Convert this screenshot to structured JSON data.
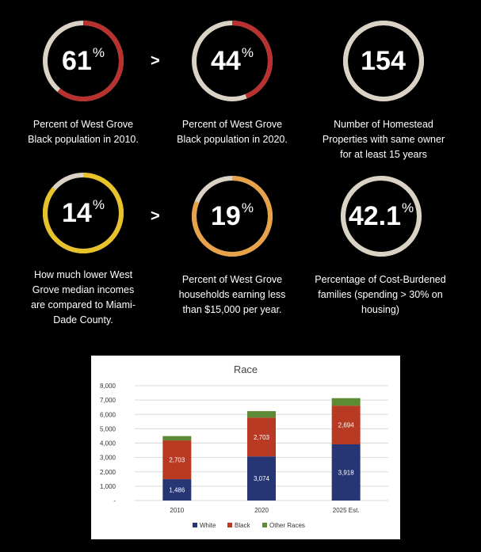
{
  "stats": [
    {
      "value": "61",
      "unit": "%",
      "fraction": 0.61,
      "color": "#b8312f",
      "track": "#d9d2c5",
      "desc": [
        "Percent of West Grove",
        "Black population in 2010."
      ]
    },
    {
      "value": "44",
      "unit": "%",
      "fraction": 0.44,
      "color": "#b8312f",
      "track": "#d9d2c5",
      "desc": [
        "Percent of West Grove",
        "Black population in 2020."
      ]
    },
    {
      "value": "154",
      "unit": "",
      "fraction": 1.0,
      "color": "#d9d2c5",
      "track": "#d9d2c5",
      "desc": [
        "Number of Homestead",
        "Properties with same owner",
        "for at least 15 years"
      ]
    },
    {
      "value": "14",
      "unit": "%",
      "fraction": 0.86,
      "color": "#e8c22a",
      "track": "#d9d2c5",
      "desc": [
        "How much lower West",
        "Grove median incomes",
        "are compared to Miami-",
        "Dade County."
      ]
    },
    {
      "value": "19",
      "unit": "%",
      "fraction": 0.81,
      "color": "#e8a24a",
      "track": "#d9d2c5",
      "desc": [
        "Percent of West Grove",
        "households earning less",
        "than $15,000 per year."
      ]
    },
    {
      "value": "42.1",
      "unit": "%",
      "fraction": 0.9,
      "color": "#d9d2c5",
      "track": "#d9d2c5",
      "desc": [
        "Percentage of Cost-Burdened",
        "families (spending > 30% on",
        "housing)"
      ]
    }
  ],
  "comparators": [
    ">",
    ">"
  ],
  "chart_data": {
    "type": "bar",
    "title": "Race",
    "categories": [
      "2010",
      "2020",
      "2025 Est."
    ],
    "series": [
      {
        "name": "White",
        "color": "#263574",
        "values": [
          1486,
          3074,
          3918
        ],
        "labels": [
          "1,486",
          "3,074",
          "3,918"
        ]
      },
      {
        "name": "Black",
        "color": "#b83a22",
        "values": [
          2703,
          2703,
          2694
        ],
        "labels": [
          "2,703",
          "2,703",
          "2,694"
        ]
      },
      {
        "name": "Other Races",
        "color": "#5c8a35",
        "values": [
          300,
          450,
          520
        ],
        "labels": [
          "",
          "",
          ""
        ]
      }
    ],
    "ylim": [
      0,
      8000
    ],
    "yticks": [
      "-",
      "1,000",
      "2,000",
      "3,000",
      "4,000",
      "5,000",
      "6,000",
      "7,000",
      "8,000"
    ],
    "grid": true,
    "legend": "bottom",
    "stacked": true
  }
}
